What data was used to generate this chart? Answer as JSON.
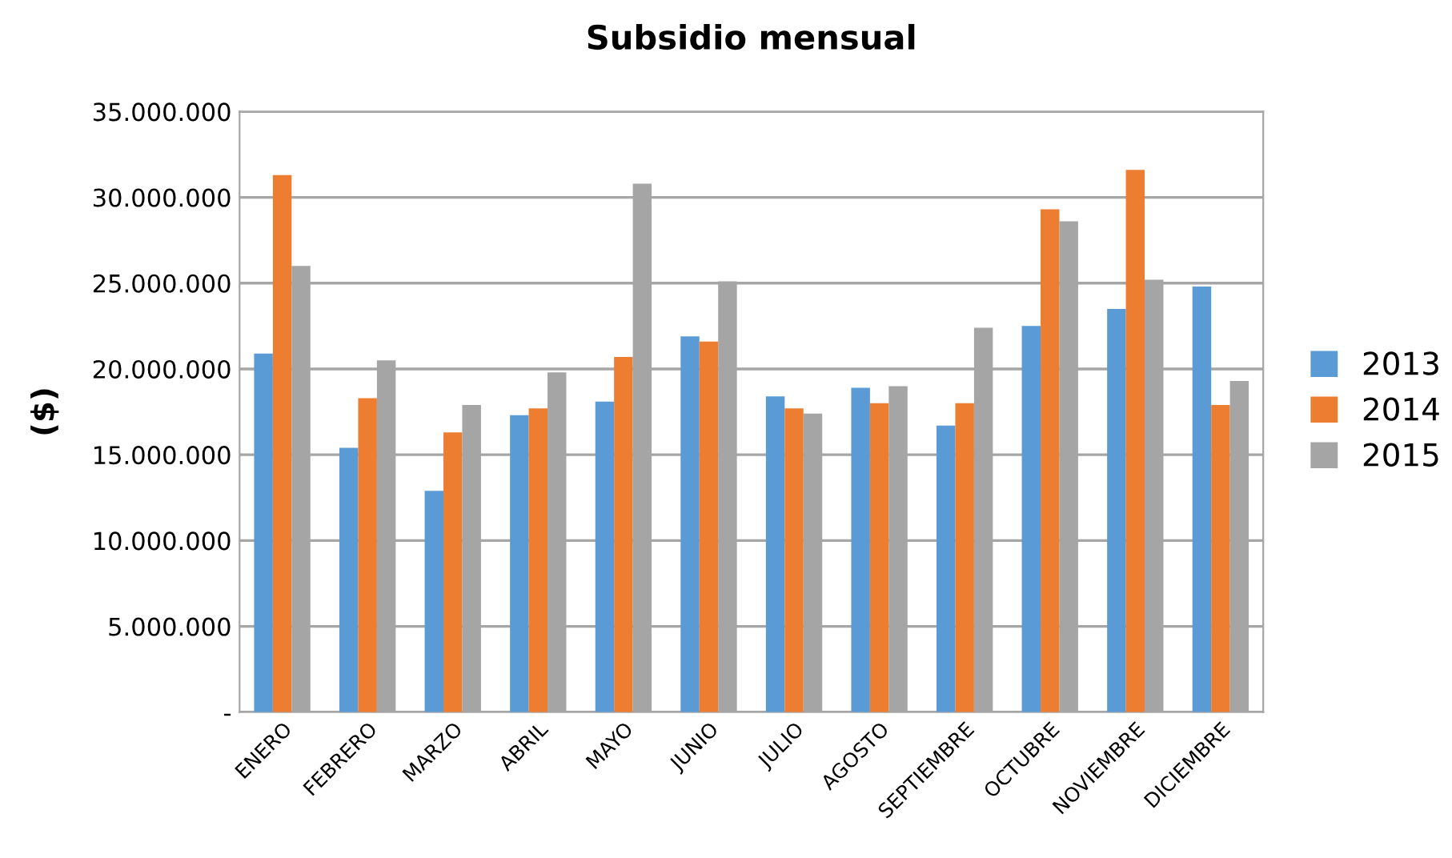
{
  "chart_data": {
    "type": "bar",
    "title": "Subsidio mensual",
    "ylabel": "($)",
    "categories": [
      "ENERO",
      "FEBRERO",
      "MARZO",
      "ABRIL",
      "MAYO",
      "JUNIO",
      "JULIO",
      "AGOSTO",
      "SEPTIEMBRE",
      "OCTUBRE",
      "NOVIEMBRE",
      "DICIEMBRE"
    ],
    "series": [
      {
        "name": "2013",
        "color": "#5b9bd5",
        "values": [
          20900000,
          15400000,
          12900000,
          17300000,
          18100000,
          21900000,
          18400000,
          18900000,
          16700000,
          22500000,
          23500000,
          24800000
        ]
      },
      {
        "name": "2014",
        "color": "#ed7d31",
        "values": [
          31300000,
          18300000,
          16300000,
          17700000,
          20700000,
          21600000,
          17700000,
          18000000,
          18000000,
          29300000,
          31600000,
          17900000
        ]
      },
      {
        "name": "2015",
        "color": "#a5a5a5",
        "values": [
          26000000,
          20500000,
          17900000,
          19800000,
          30800000,
          25100000,
          17400000,
          19000000,
          22400000,
          28600000,
          25200000,
          19300000
        ]
      }
    ],
    "ylim": [
      0,
      35000000
    ],
    "yticks": [
      {
        "value": 0,
        "label": "-"
      },
      {
        "value": 5000000,
        "label": "5.000.000"
      },
      {
        "value": 10000000,
        "label": "10.000.000"
      },
      {
        "value": 15000000,
        "label": "15.000.000"
      },
      {
        "value": 20000000,
        "label": "20.000.000"
      },
      {
        "value": 25000000,
        "label": "25.000.000"
      },
      {
        "value": 30000000,
        "label": "30.000.000"
      },
      {
        "value": 35000000,
        "label": "35.000.000"
      }
    ],
    "grid": "y",
    "legend": "right"
  }
}
